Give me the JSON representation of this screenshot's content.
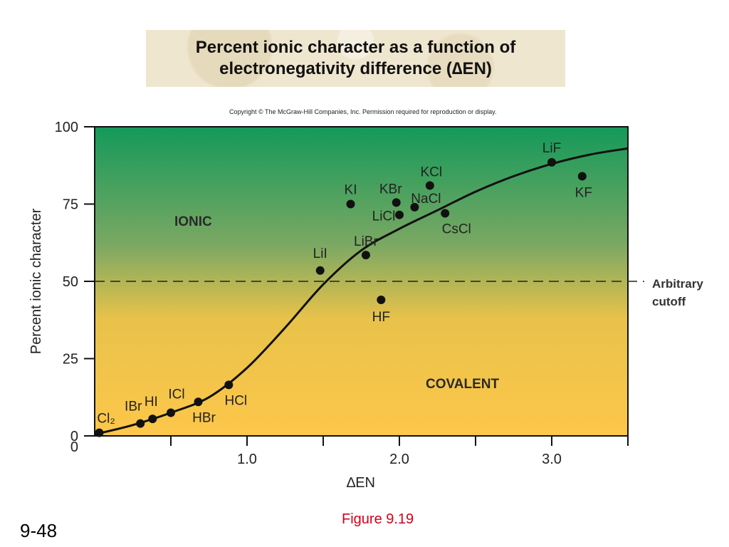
{
  "title_lines": [
    "Percent ionic character as a function of",
    "electronegativity difference (∆EN)"
  ],
  "copyright": "Copyright © The McGraw-Hill Companies, Inc. Permission required for reproduction or display.",
  "figure_caption": "Figure 9.19",
  "slide_number": "9-48",
  "colors": {
    "ionic_top": "#14995a",
    "covalent_bottom": "#fdc74a",
    "curve": "#111111",
    "caption": "#d0021b"
  },
  "chart_data": {
    "type": "scatter",
    "xlabel": "∆EN",
    "ylabel": "Percent ionic character",
    "xlim": [
      0,
      3.5
    ],
    "ylim": [
      0,
      100
    ],
    "x_ticks": [
      0.5,
      1.0,
      1.5,
      2.0,
      2.5,
      3.0,
      3.5
    ],
    "x_tick_labels": [
      "1.0",
      "2.0",
      "3.0"
    ],
    "x_tick_label_values": [
      1.0,
      2.0,
      3.0
    ],
    "y_ticks": [
      0,
      25,
      50,
      75,
      100
    ],
    "y_tick_labels": [
      "0",
      "25",
      "50",
      "75",
      "100"
    ],
    "cutoff": {
      "y": 50,
      "label_lines": [
        "Arbitrary",
        "cutoff"
      ]
    },
    "region_labels": {
      "ionic": "IONIC",
      "covalent": "COVALENT"
    },
    "points": [
      {
        "label": "Cl₂",
        "x": 0.03,
        "y": 1.0
      },
      {
        "label": "IBr",
        "x": 0.3,
        "y": 4.0
      },
      {
        "label": "HI",
        "x": 0.38,
        "y": 5.5
      },
      {
        "label": "ICl",
        "x": 0.5,
        "y": 7.5
      },
      {
        "label": "HBr",
        "x": 0.68,
        "y": 11.0
      },
      {
        "label": "HCl",
        "x": 0.88,
        "y": 16.5
      },
      {
        "label": "LiI",
        "x": 1.48,
        "y": 53.5
      },
      {
        "label": "KI",
        "x": 1.68,
        "y": 75.0
      },
      {
        "label": "LiBr",
        "x": 1.78,
        "y": 58.5
      },
      {
        "label": "HF",
        "x": 1.88,
        "y": 44.0
      },
      {
        "label": "KBr",
        "x": 1.98,
        "y": 75.5
      },
      {
        "label": "LiCl",
        "x": 2.0,
        "y": 71.5
      },
      {
        "label": "NaCl",
        "x": 2.1,
        "y": 74.0
      },
      {
        "label": "KCl",
        "x": 2.2,
        "y": 81.0
      },
      {
        "label": "CsCl",
        "x": 2.3,
        "y": 72.0
      },
      {
        "label": "LiF",
        "x": 3.0,
        "y": 88.5
      },
      {
        "label": "KF",
        "x": 3.2,
        "y": 84.0
      }
    ],
    "curve": {
      "x": [
        0.0,
        0.25,
        0.5,
        0.75,
        1.0,
        1.25,
        1.5,
        1.75,
        2.0,
        2.25,
        2.5,
        2.75,
        3.0,
        3.25,
        3.5
      ],
      "y": [
        0.5,
        3.5,
        7.5,
        12.5,
        22.0,
        35.0,
        49.0,
        60.0,
        67.0,
        73.0,
        79.0,
        84.0,
        88.0,
        91.0,
        93.0
      ]
    }
  }
}
